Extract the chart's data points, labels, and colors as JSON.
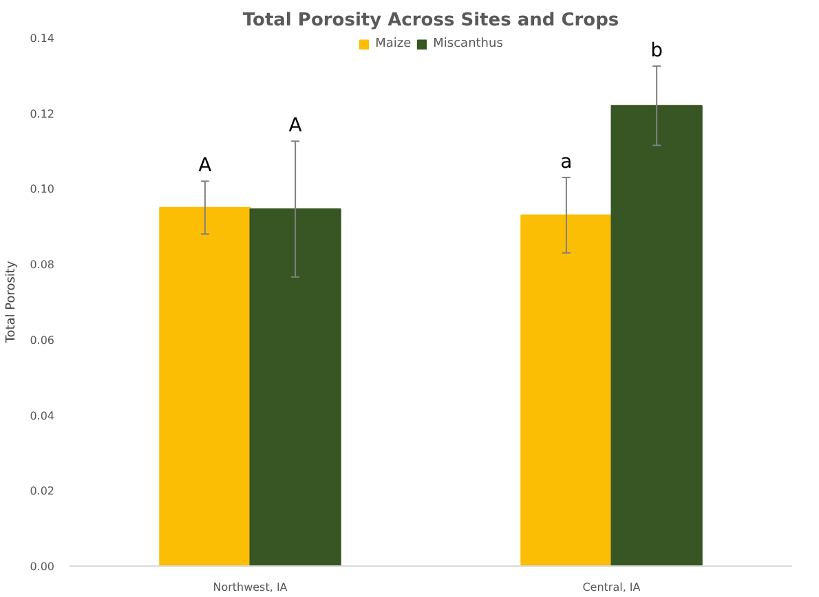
{
  "chart_data": {
    "type": "bar",
    "title": "Total Porosity Across Sites and Crops",
    "ylabel": "Total Porosity",
    "categories": [
      "Northwest, IA",
      "Central, IA"
    ],
    "series": [
      {
        "name": "Maize",
        "color": "#fbbe05",
        "values": [
          0.095,
          0.093
        ],
        "errors": [
          0.007,
          0.01
        ]
      },
      {
        "name": "Miscanthus",
        "color": "#375623",
        "values": [
          0.0946,
          0.122
        ],
        "errors": [
          0.018,
          0.0105
        ]
      }
    ],
    "annotations": [
      "A",
      "a",
      "A",
      "b"
    ],
    "ylim": [
      0,
      0.14
    ],
    "yticks": [
      {
        "value": 0,
        "label": "0.00"
      },
      {
        "value": 0.02,
        "label": "0.02"
      },
      {
        "value": 0.04,
        "label": "0.04"
      },
      {
        "value": 0.06,
        "label": "0.06"
      },
      {
        "value": 0.08,
        "label": "0.08"
      },
      {
        "value": 0.1,
        "label": "0.10"
      },
      {
        "value": 0.12,
        "label": "0.12"
      },
      {
        "value": 0.14,
        "label": "0.14"
      }
    ],
    "grid": false,
    "legend": "top"
  }
}
